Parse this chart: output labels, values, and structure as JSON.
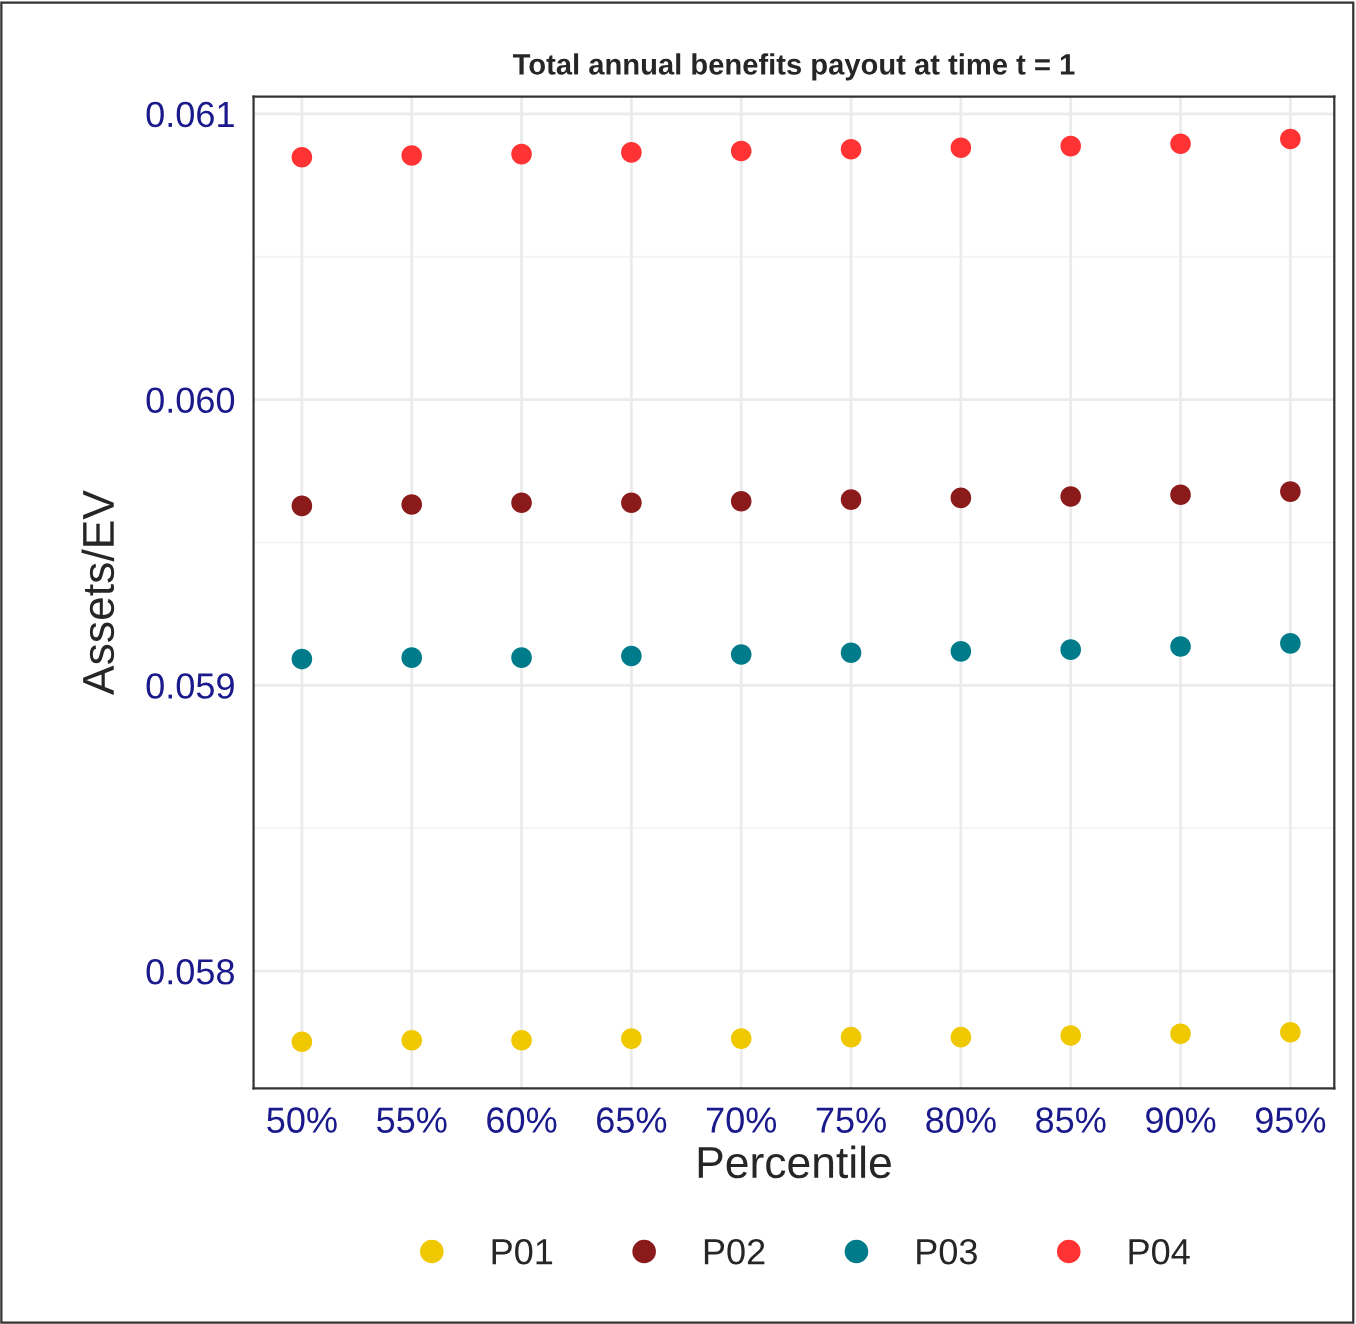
{
  "chart_data": {
    "type": "scatter",
    "title": "Total annual benefits payout at time t = 1",
    "xlabel": "Percentile",
    "ylabel": "Assets/EV",
    "categories": [
      "50%",
      "55%",
      "60%",
      "65%",
      "70%",
      "75%",
      "80%",
      "85%",
      "90%",
      "95%"
    ],
    "series": [
      {
        "name": "P01",
        "color": "#f0c800",
        "values": [
          0.057753,
          0.057758,
          0.057758,
          0.057764,
          0.057764,
          0.057769,
          0.057769,
          0.057775,
          0.057781,
          0.057786
        ]
      },
      {
        "name": "P02",
        "color": "#8b1a1a",
        "values": [
          0.059628,
          0.059633,
          0.059639,
          0.059639,
          0.059644,
          0.05965,
          0.059656,
          0.059661,
          0.059667,
          0.059678
        ]
      },
      {
        "name": "P03",
        "color": "#007b8a",
        "values": [
          0.059092,
          0.059097,
          0.059097,
          0.059103,
          0.059108,
          0.059114,
          0.059119,
          0.059125,
          0.059136,
          0.059147
        ]
      },
      {
        "name": "P04",
        "color": "#ff3333",
        "values": [
          0.060848,
          0.060854,
          0.060859,
          0.060865,
          0.06087,
          0.060876,
          0.060881,
          0.060887,
          0.060895,
          0.060912
        ]
      }
    ],
    "ylim": [
      0.05759,
      0.06106
    ],
    "yticks": [
      {
        "value": 0.058,
        "label": "0.058"
      },
      {
        "value": 0.059,
        "label": "0.059"
      },
      {
        "value": 0.06,
        "label": "0.060"
      },
      {
        "value": 0.061,
        "label": "0.061"
      }
    ],
    "grid": true,
    "legend": "bottom",
    "marker": "circle"
  }
}
